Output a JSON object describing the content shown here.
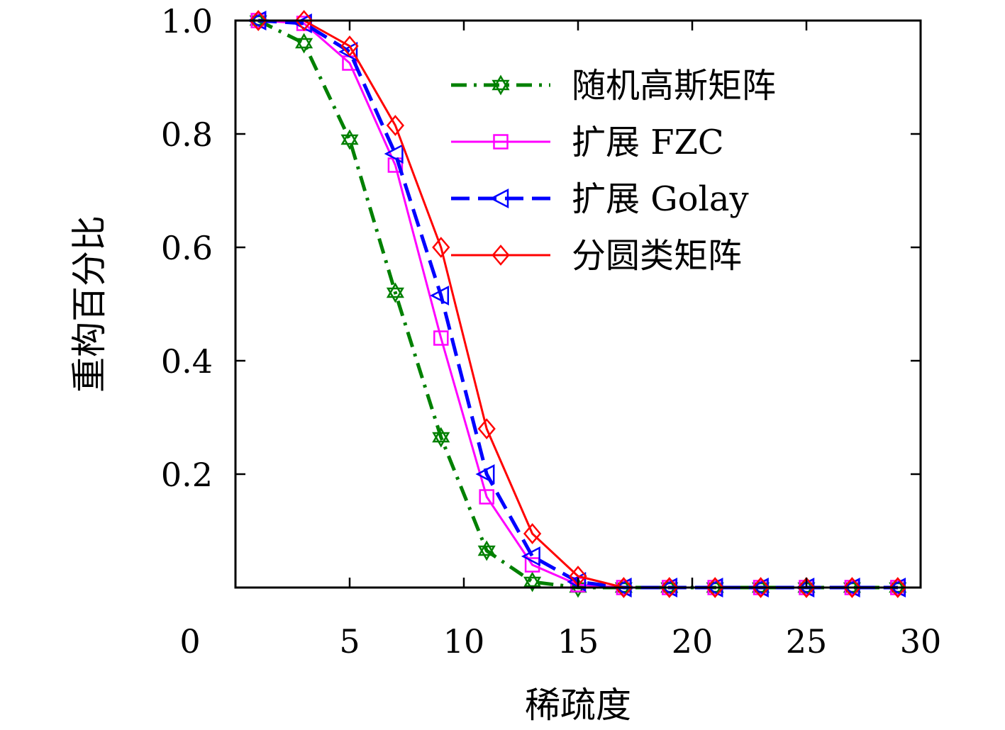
{
  "chart_data": {
    "type": "line",
    "title": "",
    "xlabel": "稀疏度",
    "ylabel": "重构百分比",
    "xlim": [
      0,
      30
    ],
    "ylim": [
      0,
      1.0
    ],
    "xticks": [
      0,
      5,
      10,
      15,
      20,
      25,
      30
    ],
    "xtick_labels": [
      "0",
      "5",
      "10",
      "15",
      "20",
      "25",
      "30"
    ],
    "yticks": [
      0.2,
      0.4,
      0.6,
      0.8,
      1.0
    ],
    "ytick_labels": [
      "0.2",
      "0.4",
      "0.6",
      "0.8",
      "1.0"
    ],
    "grid": false,
    "legend_position": "top-right",
    "x": [
      1,
      3,
      5,
      7,
      9,
      11,
      13,
      15,
      17,
      19,
      21,
      23,
      25,
      27,
      29
    ],
    "series": [
      {
        "name": "随机高斯矩阵",
        "color": "#008000",
        "line_style": "dashdot",
        "marker": "star",
        "values": [
          1.0,
          0.96,
          0.79,
          0.52,
          0.265,
          0.065,
          0.01,
          0.0,
          0.0,
          0.0,
          0.0,
          0.0,
          0.0,
          0.0,
          0.0
        ]
      },
      {
        "name": "扩展 FZC",
        "color": "#ff00ff",
        "line_style": "solid",
        "marker": "square",
        "values": [
          1.0,
          0.995,
          0.925,
          0.745,
          0.44,
          0.16,
          0.04,
          0.005,
          0.0,
          0.0,
          0.0,
          0.0,
          0.0,
          0.0,
          0.0
        ]
      },
      {
        "name": "扩展 Golay",
        "color": "#0000ff",
        "line_style": "dashed",
        "marker": "triangle-left",
        "values": [
          1.0,
          0.995,
          0.945,
          0.765,
          0.515,
          0.2,
          0.055,
          0.01,
          0.0,
          0.0,
          0.0,
          0.0,
          0.0,
          0.0,
          0.0
        ]
      },
      {
        "name": "分圆类矩阵",
        "color": "#ff0000",
        "line_style": "solid",
        "marker": "diamond",
        "values": [
          1.0,
          1.0,
          0.955,
          0.815,
          0.6,
          0.28,
          0.095,
          0.02,
          0.0,
          0.0,
          0.0,
          0.0,
          0.0,
          0.0,
          0.0
        ]
      }
    ]
  }
}
